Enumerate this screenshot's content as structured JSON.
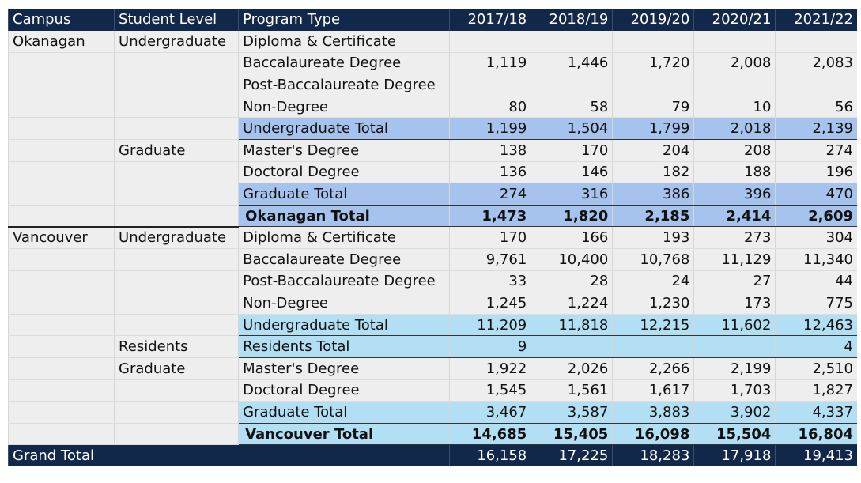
{
  "columns": [
    "Campus",
    "Student Level",
    "Program Type",
    "2017/18",
    "2018/19",
    "2019/20",
    "2020/21",
    "2021/22"
  ],
  "rows": [
    {
      "campus": "Okanagan",
      "level": "Undergraduate",
      "program": "Diploma & Certificate",
      "v": [
        "",
        "",
        "",
        "",
        ""
      ],
      "style": ""
    },
    {
      "campus": "",
      "level": "",
      "program": "Baccalaureate Degree",
      "v": [
        "1,119",
        "1,446",
        "1,720",
        "2,008",
        "2,083"
      ],
      "style": ""
    },
    {
      "campus": "",
      "level": "",
      "program": "Post-Baccalaureate Degree",
      "v": [
        "",
        "",
        "",
        "",
        ""
      ],
      "style": ""
    },
    {
      "campus": "",
      "level": "",
      "program": "Non-Degree",
      "v": [
        "80",
        "58",
        "79",
        "10",
        "56"
      ],
      "style": ""
    },
    {
      "campus": "",
      "level": "",
      "program": "Undergraduate Total",
      "v": [
        "1,199",
        "1,504",
        "1,799",
        "2,018",
        "2,139"
      ],
      "style": "okt bt"
    },
    {
      "campus": "",
      "level": "Graduate",
      "program": "Master's Degree",
      "v": [
        "138",
        "170",
        "204",
        "208",
        "274"
      ],
      "style": ""
    },
    {
      "campus": "",
      "level": "",
      "program": "Doctoral Degree",
      "v": [
        "136",
        "146",
        "182",
        "188",
        "196"
      ],
      "style": ""
    },
    {
      "campus": "",
      "level": "",
      "program": "Graduate Total",
      "v": [
        "274",
        "316",
        "386",
        "396",
        "470"
      ],
      "style": "okt bt"
    },
    {
      "campus": "",
      "level": "",
      "program": "Okanagan Total",
      "v": [
        "1,473",
        "1,820",
        "2,185",
        "2,414",
        "2,609"
      ],
      "style": "okt bt campus-total sep"
    },
    {
      "campus": "Vancouver",
      "level": "Undergraduate",
      "program": "Diploma & Certificate",
      "v": [
        "170",
        "166",
        "193",
        "273",
        "304"
      ],
      "style": ""
    },
    {
      "campus": "",
      "level": "",
      "program": "Baccalaureate Degree",
      "v": [
        "9,761",
        "10,400",
        "10,768",
        "11,129",
        "11,340"
      ],
      "style": ""
    },
    {
      "campus": "",
      "level": "",
      "program": "Post-Baccalaureate Degree",
      "v": [
        "33",
        "28",
        "24",
        "27",
        "44"
      ],
      "style": ""
    },
    {
      "campus": "",
      "level": "",
      "program": "Non-Degree",
      "v": [
        "1,245",
        "1,224",
        "1,230",
        "173",
        "775"
      ],
      "style": ""
    },
    {
      "campus": "",
      "level": "",
      "program": "Undergraduate Total",
      "v": [
        "11,209",
        "11,818",
        "12,215",
        "11,602",
        "12,463"
      ],
      "style": "vat bt"
    },
    {
      "campus": "",
      "level": "Residents",
      "program": "Residents Total",
      "v": [
        "9",
        "",
        "",
        "",
        "4"
      ],
      "style": "vat bt"
    },
    {
      "campus": "",
      "level": "Graduate",
      "program": "Master's Degree",
      "v": [
        "1,922",
        "2,026",
        "2,266",
        "2,199",
        "2,510"
      ],
      "style": ""
    },
    {
      "campus": "",
      "level": "",
      "program": "Doctoral Degree",
      "v": [
        "1,545",
        "1,561",
        "1,617",
        "1,703",
        "1,827"
      ],
      "style": ""
    },
    {
      "campus": "",
      "level": "",
      "program": "Graduate Total",
      "v": [
        "3,467",
        "3,587",
        "3,883",
        "3,902",
        "4,337"
      ],
      "style": "vat bt"
    },
    {
      "campus": "",
      "level": "",
      "program": "Vancouver Total",
      "v": [
        "14,685",
        "15,405",
        "16,098",
        "15,504",
        "16,804"
      ],
      "style": "vat bt campus-total"
    }
  ],
  "grand_total": {
    "label": "Grand Total",
    "v": [
      "16,158",
      "17,225",
      "18,283",
      "17,918",
      "19,413"
    ]
  },
  "colors": {
    "header_bg": "#12284a",
    "okanagan_total": "#a6c3ee",
    "vancouver_total": "#b3dff5",
    "cell_bg": "#eeeeee"
  }
}
